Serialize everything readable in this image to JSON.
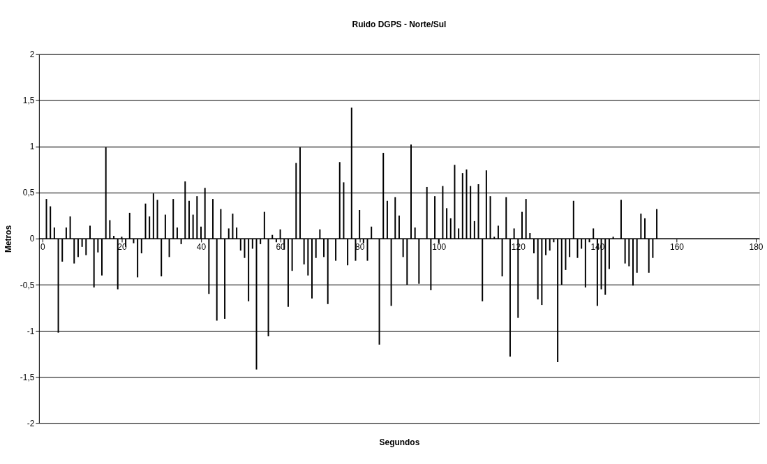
{
  "chart_data": {
    "type": "bar",
    "title": "Ruido DGPS - Norte/Sul",
    "xlabel": "Segundos",
    "ylabel": "Metros",
    "x": [
      1,
      2,
      3,
      4,
      5,
      6,
      7,
      8,
      9,
      10,
      11,
      12,
      13,
      14,
      15,
      16,
      17,
      18,
      19,
      20,
      21,
      22,
      23,
      24,
      25,
      26,
      27,
      28,
      29,
      30,
      31,
      32,
      33,
      34,
      35,
      36,
      37,
      38,
      39,
      40,
      41,
      42,
      43,
      44,
      45,
      46,
      47,
      48,
      49,
      50,
      51,
      52,
      53,
      54,
      55,
      56,
      57,
      58,
      59,
      60,
      61,
      62,
      63,
      64,
      65,
      66,
      67,
      68,
      69,
      70,
      71,
      72,
      73,
      74,
      75,
      76,
      77,
      78,
      79,
      80,
      81,
      82,
      83,
      84,
      85,
      86,
      87,
      88,
      89,
      90,
      91,
      92,
      93,
      94,
      95,
      96,
      97,
      98,
      99,
      100,
      101,
      102,
      103,
      104,
      105,
      106,
      107,
      108,
      109,
      110,
      111,
      112,
      113,
      114,
      115,
      116,
      117,
      118,
      119,
      120,
      121,
      122,
      123,
      124,
      125,
      126,
      127,
      128,
      129,
      130,
      131,
      132,
      133,
      134,
      135,
      136,
      137,
      138,
      139,
      140,
      141,
      142,
      143,
      144,
      145,
      146,
      147,
      148,
      149,
      150,
      151,
      152,
      153,
      154,
      155
    ],
    "series": [
      {
        "color": "#000000",
        "values": [
          0.43,
          0.35,
          0.12,
          -1.02,
          -0.25,
          0.12,
          0.24,
          -0.27,
          -0.2,
          -0.09,
          -0.18,
          0.14,
          -0.53,
          -0.15,
          -0.4,
          0.99,
          0.2,
          0.03,
          -0.55,
          0.02,
          -0.09,
          0.28,
          -0.05,
          -0.42,
          -0.16,
          0.38,
          0.24,
          0.49,
          0.42,
          -0.41,
          0.26,
          -0.2,
          0.43,
          0.12,
          -0.06,
          0.62,
          0.41,
          0.26,
          0.46,
          0.13,
          0.55,
          -0.6,
          0.43,
          -0.89,
          0.32,
          -0.87,
          0.11,
          0.27,
          0.12,
          -0.13,
          -0.21,
          -0.68,
          -0.11,
          -1.42,
          -0.06,
          0.29,
          -1.06,
          0.04,
          -0.04,
          0.1,
          -0.12,
          -0.74,
          -0.35,
          0.82,
          0.99,
          -0.28,
          -0.4,
          -0.65,
          -0.21,
          0.1,
          -0.2,
          -0.71,
          null,
          -0.24,
          0.83,
          0.61,
          -0.29,
          1.42,
          -0.24,
          0.31,
          -0.05,
          -0.24,
          0.13,
          null,
          -1.15,
          0.93,
          0.41,
          -0.73,
          0.45,
          0.25,
          -0.2,
          -0.5,
          1.02,
          0.12,
          -0.49,
          null,
          0.56,
          -0.56,
          0.46,
          -0.05,
          0.57,
          0.33,
          0.22,
          0.8,
          0.11,
          0.71,
          0.75,
          0.57,
          0.19,
          0.59,
          -0.68,
          0.74,
          0.46,
          0.02,
          0.14,
          -0.41,
          0.45,
          -1.28,
          0.11,
          -0.86,
          0.29,
          0.43,
          0.06,
          -0.16,
          -0.66,
          -0.72,
          -0.18,
          -0.13,
          -0.04,
          -1.34,
          -0.5,
          -0.34,
          -0.2,
          0.41,
          -0.21,
          -0.11,
          -0.53,
          -0.04,
          0.11,
          -0.73,
          -0.55,
          -0.61,
          -0.33,
          0.02,
          null,
          0.42,
          -0.27,
          -0.3,
          -0.51,
          -0.37,
          0.27,
          0.22,
          -0.37,
          -0.21,
          0.32
        ]
      }
    ],
    "xlim": [
      0,
      180
    ],
    "xticks": [
      0,
      20,
      40,
      60,
      80,
      100,
      120,
      140,
      160,
      180
    ],
    "ylim": [
      -2,
      2
    ],
    "yticks": [
      -2,
      {
        "value": -1.5,
        "label": "-1,5"
      },
      -1,
      {
        "value": -0.5,
        "label": "-0,5"
      },
      0,
      {
        "value": 0.5,
        "label": "0,5"
      },
      1,
      {
        "value": 1.5,
        "label": "1,5"
      },
      2
    ],
    "grid": "y"
  }
}
